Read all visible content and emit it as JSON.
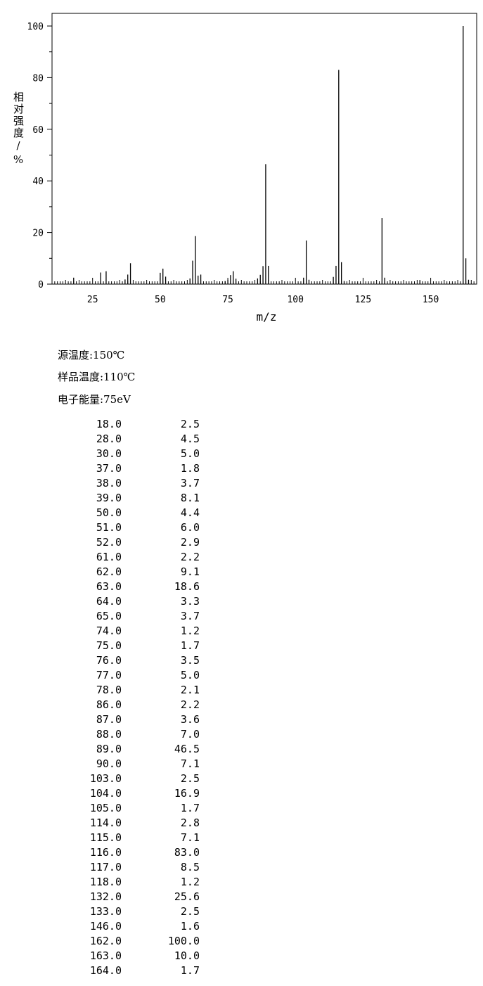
{
  "chart_data": {
    "type": "bar",
    "xlabel": "m/z",
    "ylabel": "相对强度/%",
    "xlim": [
      10,
      167
    ],
    "ylim": [
      0,
      100
    ],
    "x_ticks": [
      25,
      50,
      75,
      100,
      125,
      150
    ],
    "y_ticks": [
      0,
      20,
      40,
      60,
      80,
      100
    ],
    "grid": false,
    "peaks": [
      {
        "mz": 18.0,
        "intensity": 2.5
      },
      {
        "mz": 28.0,
        "intensity": 4.5
      },
      {
        "mz": 30.0,
        "intensity": 5.0
      },
      {
        "mz": 37.0,
        "intensity": 1.8
      },
      {
        "mz": 38.0,
        "intensity": 3.7
      },
      {
        "mz": 39.0,
        "intensity": 8.1
      },
      {
        "mz": 50.0,
        "intensity": 4.4
      },
      {
        "mz": 51.0,
        "intensity": 6.0
      },
      {
        "mz": 52.0,
        "intensity": 2.9
      },
      {
        "mz": 61.0,
        "intensity": 2.2
      },
      {
        "mz": 62.0,
        "intensity": 9.1
      },
      {
        "mz": 63.0,
        "intensity": 18.6
      },
      {
        "mz": 64.0,
        "intensity": 3.3
      },
      {
        "mz": 65.0,
        "intensity": 3.7
      },
      {
        "mz": 74.0,
        "intensity": 1.2
      },
      {
        "mz": 75.0,
        "intensity": 1.7
      },
      {
        "mz": 76.0,
        "intensity": 3.5
      },
      {
        "mz": 77.0,
        "intensity": 5.0
      },
      {
        "mz": 78.0,
        "intensity": 2.1
      },
      {
        "mz": 86.0,
        "intensity": 2.2
      },
      {
        "mz": 87.0,
        "intensity": 3.6
      },
      {
        "mz": 88.0,
        "intensity": 7.0
      },
      {
        "mz": 89.0,
        "intensity": 46.5
      },
      {
        "mz": 90.0,
        "intensity": 7.1
      },
      {
        "mz": 103.0,
        "intensity": 2.5
      },
      {
        "mz": 104.0,
        "intensity": 16.9
      },
      {
        "mz": 105.0,
        "intensity": 1.7
      },
      {
        "mz": 114.0,
        "intensity": 2.8
      },
      {
        "mz": 115.0,
        "intensity": 7.1
      },
      {
        "mz": 116.0,
        "intensity": 83.0
      },
      {
        "mz": 117.0,
        "intensity": 8.5
      },
      {
        "mz": 118.0,
        "intensity": 1.2
      },
      {
        "mz": 132.0,
        "intensity": 25.6
      },
      {
        "mz": 133.0,
        "intensity": 2.5
      },
      {
        "mz": 146.0,
        "intensity": 1.6
      },
      {
        "mz": 162.0,
        "intensity": 100.0
      },
      {
        "mz": 163.0,
        "intensity": 10.0
      },
      {
        "mz": 164.0,
        "intensity": 1.7
      }
    ]
  },
  "conditions": {
    "source_temp": "源温度:150℃",
    "sample_temp": "样品温度:110℃",
    "electron_energy": "电子能量:75eV"
  },
  "table": {
    "rows": [
      [
        "18.0",
        "2.5"
      ],
      [
        "28.0",
        "4.5"
      ],
      [
        "30.0",
        "5.0"
      ],
      [
        "37.0",
        "1.8"
      ],
      [
        "38.0",
        "3.7"
      ],
      [
        "39.0",
        "8.1"
      ],
      [
        "50.0",
        "4.4"
      ],
      [
        "51.0",
        "6.0"
      ],
      [
        "52.0",
        "2.9"
      ],
      [
        "61.0",
        "2.2"
      ],
      [
        "62.0",
        "9.1"
      ],
      [
        "63.0",
        "18.6"
      ],
      [
        "64.0",
        "3.3"
      ],
      [
        "65.0",
        "3.7"
      ],
      [
        "74.0",
        "1.2"
      ],
      [
        "75.0",
        "1.7"
      ],
      [
        "76.0",
        "3.5"
      ],
      [
        "77.0",
        "5.0"
      ],
      [
        "78.0",
        "2.1"
      ],
      [
        "86.0",
        "2.2"
      ],
      [
        "87.0",
        "3.6"
      ],
      [
        "88.0",
        "7.0"
      ],
      [
        "89.0",
        "46.5"
      ],
      [
        "90.0",
        "7.1"
      ],
      [
        "103.0",
        "2.5"
      ],
      [
        "104.0",
        "16.9"
      ],
      [
        "105.0",
        "1.7"
      ],
      [
        "114.0",
        "2.8"
      ],
      [
        "115.0",
        "7.1"
      ],
      [
        "116.0",
        "83.0"
      ],
      [
        "117.0",
        "8.5"
      ],
      [
        "118.0",
        "1.2"
      ],
      [
        "132.0",
        "25.6"
      ],
      [
        "133.0",
        "2.5"
      ],
      [
        "146.0",
        "1.6"
      ],
      [
        "162.0",
        "100.0"
      ],
      [
        "163.0",
        "10.0"
      ],
      [
        "164.0",
        "1.7"
      ]
    ]
  }
}
